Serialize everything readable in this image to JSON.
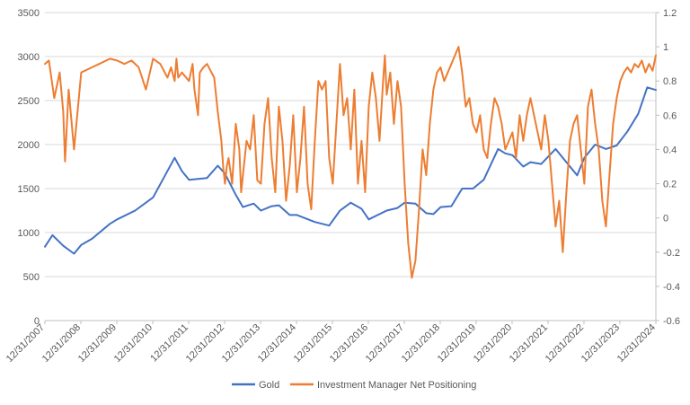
{
  "colors": {
    "gold": "#4472C4",
    "positioning": "#ED7D31",
    "grid": "#D9D9D9",
    "text": "#595959"
  },
  "chart_data": {
    "type": "line",
    "title": "",
    "xlabel": "",
    "ylabel": "",
    "x_range": [
      "12/31/2007",
      "12/31/2024"
    ],
    "x_ticks": [
      "12/31/2007",
      "12/31/2008",
      "12/31/2009",
      "12/31/2010",
      "12/31/2011",
      "12/31/2012",
      "12/31/2013",
      "12/31/2014",
      "12/31/2015",
      "12/31/2016",
      "12/31/2017",
      "12/31/2018",
      "12/31/2019",
      "12/31/2020",
      "12/31/2021",
      "12/31/2022",
      "12/31/2023",
      "12/31/2024"
    ],
    "y_left": {
      "range": [
        0,
        3500
      ],
      "ticks": [
        0,
        500,
        1000,
        1500,
        2000,
        2500,
        3000,
        3500
      ]
    },
    "y_right": {
      "range": [
        -0.6,
        1.2
      ],
      "ticks": [
        "-0.6",
        "-0.4",
        "-0.2",
        "0",
        "0.2",
        "0.4",
        "0.6",
        "0.8",
        "1",
        "1.2"
      ]
    },
    "grid": true,
    "legend": "bottom-center",
    "series": [
      {
        "name": "Gold",
        "axis": "left",
        "color": "#4472C4",
        "x": [
          2007.99,
          2008.2,
          2008.5,
          2008.8,
          2009.0,
          2009.3,
          2009.8,
          2010.0,
          2010.5,
          2011.0,
          2011.6,
          2011.8,
          2012.0,
          2012.5,
          2012.8,
          2013.0,
          2013.3,
          2013.5,
          2013.8,
          2014.0,
          2014.3,
          2014.5,
          2014.8,
          2015.0,
          2015.5,
          2015.9,
          2016.2,
          2016.5,
          2016.8,
          2017.0,
          2017.5,
          2017.8,
          2018.0,
          2018.3,
          2018.6,
          2018.8,
          2019.0,
          2019.3,
          2019.6,
          2019.9,
          2020.2,
          2020.6,
          2020.8,
          2021.0,
          2021.3,
          2021.5,
          2021.8,
          2022.2,
          2022.5,
          2022.8,
          2023.0,
          2023.3,
          2023.6,
          2023.9,
          2024.2,
          2024.5,
          2024.75,
          2024.99
        ],
        "y": [
          840,
          970,
          850,
          760,
          860,
          930,
          1100,
          1150,
          1250,
          1400,
          1850,
          1700,
          1600,
          1620,
          1760,
          1670,
          1430,
          1290,
          1330,
          1250,
          1300,
          1310,
          1200,
          1200,
          1120,
          1080,
          1250,
          1340,
          1270,
          1150,
          1250,
          1280,
          1340,
          1330,
          1220,
          1210,
          1290,
          1300,
          1500,
          1500,
          1600,
          1950,
          1900,
          1880,
          1750,
          1800,
          1780,
          1950,
          1800,
          1650,
          1850,
          2000,
          1950,
          1990,
          2150,
          2350,
          2650,
          2620
        ]
      },
      {
        "name": "Investment Manager Net Positioning",
        "axis": "right",
        "color": "#ED7D31",
        "x": [
          2007.99,
          2008.1,
          2008.25,
          2008.4,
          2008.5,
          2008.55,
          2008.65,
          2008.8,
          2009.0,
          2009.3,
          2009.5,
          2009.8,
          2010.0,
          2010.2,
          2010.4,
          2010.6,
          2010.8,
          2011.0,
          2011.2,
          2011.4,
          2011.5,
          2011.6,
          2011.65,
          2011.7,
          2011.8,
          2012.0,
          2012.1,
          2012.15,
          2012.25,
          2012.3,
          2012.4,
          2012.5,
          2012.7,
          2012.8,
          2012.9,
          2012.95,
          2013.0,
          2013.05,
          2013.1,
          2013.2,
          2013.3,
          2013.4,
          2013.45,
          2013.5,
          2013.6,
          2013.7,
          2013.8,
          2013.9,
          2014.0,
          2014.1,
          2014.2,
          2014.3,
          2014.4,
          2014.5,
          2014.6,
          2014.7,
          2014.8,
          2014.9,
          2015.0,
          2015.1,
          2015.2,
          2015.3,
          2015.4,
          2015.5,
          2015.6,
          2015.7,
          2015.8,
          2015.9,
          2016.0,
          2016.1,
          2016.2,
          2016.3,
          2016.4,
          2016.5,
          2016.6,
          2016.7,
          2016.8,
          2016.9,
          2017.0,
          2017.1,
          2017.2,
          2017.3,
          2017.4,
          2017.45,
          2017.5,
          2017.6,
          2017.7,
          2017.8,
          2017.9,
          2018.0,
          2018.1,
          2018.2,
          2018.3,
          2018.4,
          2018.5,
          2018.6,
          2018.7,
          2018.8,
          2018.9,
          2019.0,
          2019.1,
          2019.2,
          2019.3,
          2019.4,
          2019.5,
          2019.6,
          2019.7,
          2019.8,
          2019.9,
          2020.0,
          2020.1,
          2020.2,
          2020.3,
          2020.4,
          2020.5,
          2020.6,
          2020.7,
          2020.8,
          2020.9,
          2021.0,
          2021.1,
          2021.2,
          2021.3,
          2021.4,
          2021.5,
          2021.6,
          2021.7,
          2021.8,
          2021.9,
          2022.0,
          2022.1,
          2022.2,
          2022.3,
          2022.4,
          2022.5,
          2022.6,
          2022.7,
          2022.8,
          2022.9,
          2023.0,
          2023.1,
          2023.2,
          2023.3,
          2023.4,
          2023.5,
          2023.6,
          2023.7,
          2023.8,
          2023.9,
          2024.0,
          2024.1,
          2024.2,
          2024.3,
          2024.4,
          2024.5,
          2024.6,
          2024.7,
          2024.8,
          2024.9,
          2024.99
        ],
        "y": [
          0.9,
          0.92,
          0.7,
          0.85,
          0.62,
          0.33,
          0.75,
          0.4,
          0.85,
          0.88,
          0.9,
          0.93,
          0.92,
          0.9,
          0.92,
          0.88,
          0.75,
          0.93,
          0.9,
          0.82,
          0.88,
          0.8,
          0.93,
          0.82,
          0.85,
          0.8,
          0.9,
          0.75,
          0.6,
          0.85,
          0.88,
          0.9,
          0.82,
          0.62,
          0.45,
          0.3,
          0.2,
          0.3,
          0.35,
          0.2,
          0.55,
          0.4,
          0.15,
          0.25,
          0.45,
          0.4,
          0.6,
          0.22,
          0.2,
          0.55,
          0.7,
          0.35,
          0.15,
          0.65,
          0.45,
          0.1,
          0.3,
          0.6,
          0.15,
          0.35,
          0.65,
          0.2,
          0.05,
          0.45,
          0.8,
          0.75,
          0.8,
          0.35,
          0.2,
          0.55,
          0.9,
          0.6,
          0.7,
          0.4,
          0.75,
          0.2,
          0.45,
          0.15,
          0.65,
          0.85,
          0.7,
          0.45,
          0.8,
          0.95,
          0.72,
          0.85,
          0.55,
          0.8,
          0.65,
          0.2,
          -0.15,
          -0.35,
          -0.25,
          0.05,
          0.4,
          0.25,
          0.55,
          0.75,
          0.85,
          0.88,
          0.8,
          0.85,
          0.9,
          0.95,
          1.0,
          0.85,
          0.65,
          0.7,
          0.55,
          0.5,
          0.6,
          0.4,
          0.35,
          0.55,
          0.7,
          0.65,
          0.55,
          0.4,
          0.45,
          0.5,
          0.35,
          0.6,
          0.45,
          0.6,
          0.7,
          0.6,
          0.5,
          0.4,
          0.6,
          0.45,
          0.2,
          -0.05,
          0.1,
          -0.2,
          0.15,
          0.45,
          0.55,
          0.6,
          0.4,
          0.2,
          0.65,
          0.75,
          0.55,
          0.4,
          0.1,
          -0.05,
          0.25,
          0.55,
          0.7,
          0.8,
          0.85,
          0.88,
          0.85,
          0.9,
          0.88,
          0.92,
          0.85,
          0.9,
          0.86,
          0.95
        ]
      }
    ]
  },
  "legend": {
    "gold_label": "Gold",
    "positioning_label": "Investment Manager Net Positioning"
  }
}
